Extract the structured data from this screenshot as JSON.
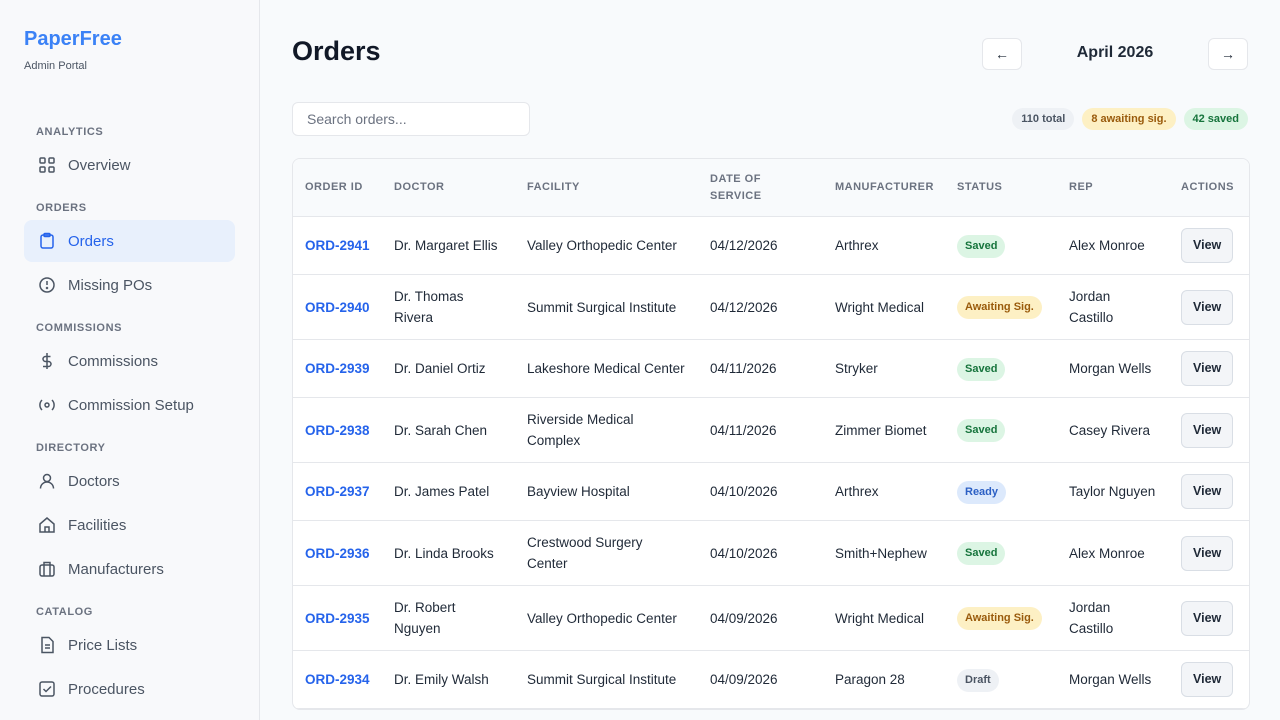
{
  "brand": {
    "name": "PaperFree",
    "subtitle": "Admin Portal"
  },
  "nav": [
    {
      "section": "ANALYTICS",
      "items": [
        {
          "label": "Overview"
        }
      ]
    },
    {
      "section": "ORDERS",
      "items": [
        {
          "label": "Orders",
          "active": true
        },
        {
          "label": "Missing POs"
        }
      ]
    },
    {
      "section": "COMMISSIONS",
      "items": [
        {
          "label": "Commissions"
        },
        {
          "label": "Commission Setup"
        }
      ]
    },
    {
      "section": "DIRECTORY",
      "items": [
        {
          "label": "Doctors"
        },
        {
          "label": "Facilities"
        },
        {
          "label": "Manufacturers"
        }
      ]
    },
    {
      "section": "CATALOG",
      "items": [
        {
          "label": "Price Lists"
        },
        {
          "label": "Procedures"
        }
      ]
    }
  ],
  "header": {
    "title": "Orders",
    "prev": "←",
    "month": "April 2026",
    "next": "→"
  },
  "search": {
    "placeholder": "Search orders..."
  },
  "badges": [
    {
      "label": "110 total",
      "tone": "gray"
    },
    {
      "label": "8 awaiting sig.",
      "tone": "yellow"
    },
    {
      "label": "42 saved",
      "tone": "green"
    }
  ],
  "table": {
    "headers": [
      "ORDER ID",
      "DOCTOR",
      "FACILITY",
      "DATE OF SERVICE",
      "MANUFACTURER",
      "STATUS",
      "REP",
      "ACTIONS"
    ],
    "rows": [
      {
        "id": "ORD-2941",
        "doctor": "Dr. Margaret Ellis",
        "facility": "Valley Orthopedic Center",
        "date": "04/12/2026",
        "manufacturer": "Arthrex",
        "status": "Saved",
        "tone": "green",
        "rep": "Alex Monroe",
        "action": "View"
      },
      {
        "id": "ORD-2940",
        "doctor": "Dr. Thomas Rivera",
        "facility": "Summit Surgical Institute",
        "date": "04/12/2026",
        "manufacturer": "Wright Medical",
        "status": "Awaiting Sig.",
        "tone": "yellow",
        "rep": "Jordan Castillo",
        "action": "View"
      },
      {
        "id": "ORD-2939",
        "doctor": "Dr. Daniel Ortiz",
        "facility": "Lakeshore Medical Center",
        "date": "04/11/2026",
        "manufacturer": "Stryker",
        "status": "Saved",
        "tone": "green",
        "rep": "Morgan Wells",
        "action": "View"
      },
      {
        "id": "ORD-2938",
        "doctor": "Dr. Sarah Chen",
        "facility": "Riverside Medical Complex",
        "date": "04/11/2026",
        "manufacturer": "Zimmer Biomet",
        "status": "Saved",
        "tone": "green",
        "rep": "Casey Rivera",
        "action": "View"
      },
      {
        "id": "ORD-2937",
        "doctor": "Dr. James Patel",
        "facility": "Bayview Hospital",
        "date": "04/10/2026",
        "manufacturer": "Arthrex",
        "status": "Ready",
        "tone": "blue",
        "rep": "Taylor Nguyen",
        "action": "View"
      },
      {
        "id": "ORD-2936",
        "doctor": "Dr. Linda Brooks",
        "facility": "Crestwood Surgery Center",
        "date": "04/10/2026",
        "manufacturer": "Smith+Nephew",
        "status": "Saved",
        "tone": "green",
        "rep": "Alex Monroe",
        "action": "View"
      },
      {
        "id": "ORD-2935",
        "doctor": "Dr. Robert Nguyen",
        "facility": "Valley Orthopedic Center",
        "date": "04/09/2026",
        "manufacturer": "Wright Medical",
        "status": "Awaiting Sig.",
        "tone": "yellow",
        "rep": "Jordan Castillo",
        "action": "View"
      },
      {
        "id": "ORD-2934",
        "doctor": "Dr. Emily Walsh",
        "facility": "Summit Surgical Institute",
        "date": "04/09/2026",
        "manufacturer": "Paragon 28",
        "status": "Draft",
        "tone": "gray",
        "rep": "Morgan Wells",
        "action": "View"
      }
    ]
  }
}
